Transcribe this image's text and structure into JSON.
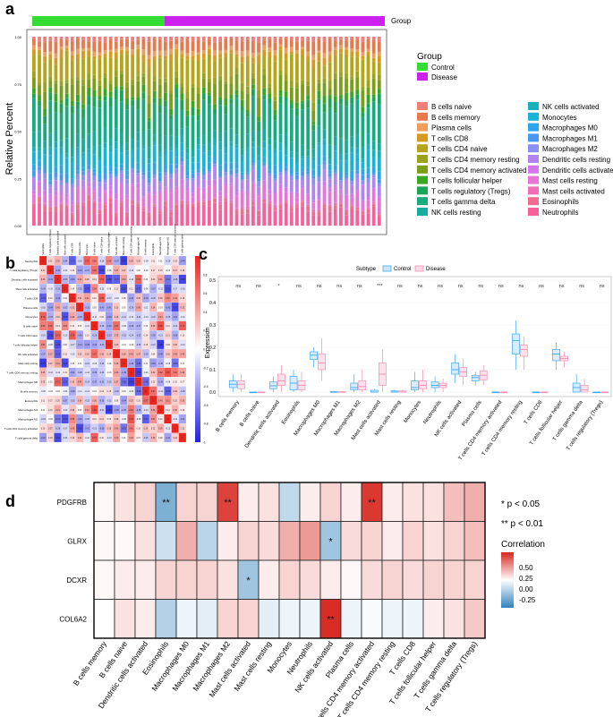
{
  "panel_labels": {
    "a": "a",
    "b": "b",
    "c": "c",
    "d": "d"
  },
  "colors": {
    "control": "#33dd33",
    "disease": "#cc22ee",
    "cells": [
      "#f07f7a",
      "#e8784e",
      "#ef9d5a",
      "#d69a1f",
      "#b5a51a",
      "#9aa418",
      "#7a9e15",
      "#3aa722",
      "#1aa659",
      "#19ab7d",
      "#17ad9c",
      "#19b0bd",
      "#1ab3d8",
      "#2aa6ec",
      "#4a97f0",
      "#8b8ff5",
      "#b183f3",
      "#d476ec",
      "#e874d6",
      "#f06fb6",
      "#f46b92",
      "#f7619a"
    ],
    "box_control": "#3fa9f5",
    "box_disease": "#f08fb4",
    "corr_low": "#3182bd",
    "corr_mid": "#ffffff",
    "corr_high": "#d7261e"
  },
  "legend": {
    "group_title": "Group",
    "group_items": [
      "Control",
      "Disease"
    ],
    "cell_types": [
      "B cells naive",
      "B cells memory",
      "Plasma cells",
      "T cells CD8",
      "T cells CD4 naive",
      "T cells CD4 memory resting",
      "T cells CD4 memory activated",
      "T cells follicular helper",
      "T cells regulatory (Tregs)",
      "T cells gamma delta",
      "NK cells resting",
      "NK cells activated",
      "Monocytes",
      "Macrophages M0",
      "Macrophages M1",
      "Macrophages M2",
      "Dendritic cells resting",
      "Dendritic cells activated",
      "Mast cells resting",
      "Mast cells activated",
      "Eosinophils",
      "Neutrophils"
    ]
  },
  "annotations": {
    "group_bar_label": "Group",
    "sig1": "* p < 0.05",
    "sig2": "** p < 0.01",
    "subtype_title": "Subtype",
    "subtype_control": "Control",
    "subtype_disease": "Disease",
    "corr_title": "Correlation"
  },
  "chart_data": [
    {
      "id": "a",
      "type": "bar",
      "stacked": true,
      "ylabel": "Relative Percent",
      "xlabel": "",
      "yticks": [
        "0.00",
        "0.25",
        "0.50",
        "0.75",
        "1.00"
      ],
      "ylim": [
        0,
        1
      ],
      "n_control": 24,
      "n_disease": 40,
      "series_note": "22 stacked immune cell fractions per sample (bottom: Neutrophils, top: B cells naive)"
    },
    {
      "id": "b",
      "type": "heatmap",
      "labels": [
        "Neutrophils",
        "T cells regulatory (Tregs)",
        "Dendritic cells activated",
        "Mast cells activated",
        "T cells CD8",
        "Plasma cells",
        "Monocytes",
        "B cells naive",
        "T cells CD4 naive",
        "T cells follicular helper",
        "NK cells activated",
        "Mast cells resting",
        "T cells CD4 memory resting",
        "Macrophages M0",
        "B cells memory",
        "Eosinophils",
        "Macrophages M1",
        "Macrophages M2",
        "T cells CD4 memory activated",
        "T cells gamma delta"
      ],
      "scale_ticks": [
        "1",
        "0.8",
        "0.6",
        "0.4",
        "0.2",
        "0",
        "-0.2",
        "-0.4",
        "-0.6",
        "-0.8",
        "-1"
      ]
    },
    {
      "id": "c",
      "type": "box",
      "ylabel": "Expression",
      "yticks": [
        "0.0",
        "0.1",
        "0.2",
        "0.3",
        "0.4",
        "0.5"
      ],
      "ylim": [
        0,
        0.5
      ],
      "categories": [
        "B cells memory",
        "B cells naive",
        "Dendritic cells activated",
        "Eosinophils",
        "Macrophages M0",
        "Macrophages M1",
        "Macrophages M2",
        "Mast cells activated",
        "Mast cells resting",
        "Monocytes",
        "Neutrophils",
        "NK cells activated",
        "Plasma cells",
        "T cells CD4 memory activated",
        "T cells CD4 memory resting",
        "T cells CD8",
        "T cells follicular helper",
        "T cells gamma delta",
        "T cells regulatory (Tregs)"
      ],
      "significance": [
        "ns",
        "ns",
        "*",
        "ns",
        "ns",
        "ns",
        "ns",
        "***",
        "ns",
        "ns",
        "ns",
        "ns",
        "ns",
        "ns",
        "ns",
        "ns",
        "ns",
        "ns",
        "ns"
      ],
      "control": [
        [
          0.0,
          0.02,
          0.035,
          0.05,
          0.08
        ],
        [
          0,
          0,
          0,
          0,
          0.002
        ],
        [
          0.0,
          0.015,
          0.028,
          0.045,
          0.07
        ],
        [
          0.0,
          0.01,
          0.04,
          0.07,
          0.1
        ],
        [
          0.11,
          0.145,
          0.165,
          0.18,
          0.2
        ],
        [
          0,
          0,
          0,
          0.002,
          0.005
        ],
        [
          0.0,
          0.01,
          0.02,
          0.04,
          0.08
        ],
        [
          0,
          0,
          0,
          0.008,
          0.015
        ],
        [
          0,
          0,
          0,
          0.005,
          0.01
        ],
        [
          0.0,
          0.01,
          0.02,
          0.05,
          0.09
        ],
        [
          0.0,
          0.02,
          0.03,
          0.045,
          0.07
        ],
        [
          0.04,
          0.08,
          0.1,
          0.13,
          0.17
        ],
        [
          0.03,
          0.05,
          0.065,
          0.075,
          0.09
        ],
        [
          0,
          0,
          0,
          0,
          0.001
        ],
        [
          0.1,
          0.17,
          0.23,
          0.26,
          0.32
        ],
        [
          0,
          0,
          0,
          0,
          0.002
        ],
        [
          0.1,
          0.14,
          0.17,
          0.19,
          0.22
        ],
        [
          0.0,
          0.0,
          0.02,
          0.04,
          0.08
        ],
        [
          0,
          0,
          0,
          0,
          0.002
        ]
      ],
      "disease": [
        [
          0.0,
          0.015,
          0.035,
          0.05,
          0.08
        ],
        [
          0,
          0,
          0,
          0,
          0.002
        ],
        [
          0.0,
          0.03,
          0.05,
          0.08,
          0.12
        ],
        [
          0.0,
          0.01,
          0.03,
          0.05,
          0.09
        ],
        [
          0.05,
          0.1,
          0.13,
          0.17,
          0.24
        ],
        [
          0,
          0,
          0,
          0.002,
          0.005
        ],
        [
          0.0,
          0.01,
          0.025,
          0.05,
          0.1
        ],
        [
          0.0,
          0.03,
          0.08,
          0.13,
          0.19
        ],
        [
          0,
          0,
          0,
          0.005,
          0.01
        ],
        [
          0.0,
          0.015,
          0.03,
          0.05,
          0.1
        ],
        [
          0.0,
          0.02,
          0.03,
          0.04,
          0.06
        ],
        [
          0.03,
          0.07,
          0.09,
          0.11,
          0.15
        ],
        [
          0.03,
          0.055,
          0.075,
          0.095,
          0.12
        ],
        [
          0,
          0,
          0,
          0,
          0.001
        ],
        [
          0.1,
          0.16,
          0.19,
          0.21,
          0.25
        ],
        [
          0,
          0,
          0,
          0,
          0.002
        ],
        [
          0.11,
          0.14,
          0.15,
          0.16,
          0.18
        ],
        [
          0.0,
          0.0,
          0.01,
          0.03,
          0.06
        ],
        [
          0,
          0,
          0,
          0,
          0.002
        ]
      ]
    },
    {
      "id": "d",
      "type": "heatmap",
      "rows": [
        "PDGFRB",
        "GLRX",
        "DCXR",
        "COL6A2"
      ],
      "columns": [
        "B cells memory",
        "B cells naive",
        "Dendritic cells activated",
        "Eosinophils",
        "Macrophages M0",
        "Macrophages M1",
        "Macrophages M2",
        "Mast cells activated",
        "Mast cells resting",
        "Monocytes",
        "Neutrophils",
        "NK cells activated",
        "Plasma cells",
        "T cells CD4 memory activated",
        "T cells CD4 memory resting",
        "T cells CD8",
        "T cells follicular helper",
        "T cells gamma delta",
        "T cells regulatory (Tregs)"
      ],
      "values": [
        [
          0.02,
          0.08,
          0.12,
          -0.38,
          0.12,
          0.12,
          0.52,
          0.05,
          0.08,
          -0.18,
          0.05,
          0.12,
          0.05,
          0.55,
          0.05,
          0.08,
          0.08,
          0.18,
          0.22
        ],
        [
          0.02,
          0.02,
          0.08,
          -0.15,
          0.22,
          -0.2,
          0.05,
          0.12,
          0.1,
          0.22,
          0.28,
          -0.28,
          0.1,
          0.12,
          0.05,
          0.12,
          0.08,
          0.12,
          0.18
        ],
        [
          0.02,
          0.05,
          0.05,
          0.12,
          0.12,
          0.12,
          0.08,
          -0.28,
          0.05,
          0.12,
          0.1,
          0.05,
          0.02,
          0.1,
          0.12,
          0.1,
          0.12,
          0.12,
          0.12
        ],
        [
          0.0,
          0.08,
          0.05,
          -0.22,
          -0.05,
          -0.08,
          0.12,
          0.12,
          -0.08,
          -0.05,
          -0.05,
          0.58,
          -0.05,
          -0.02,
          -0.05,
          -0.05,
          0.05,
          0.08,
          0.15
        ]
      ],
      "stars": [
        [
          "",
          "",
          "",
          "**",
          "",
          "",
          "**",
          "",
          "",
          "",
          "",
          "",
          "",
          "**",
          "",
          "",
          "",
          "",
          ""
        ],
        [
          "",
          "",
          "",
          "",
          "",
          "",
          "",
          "",
          "",
          "",
          "",
          "*",
          "",
          "",
          "",
          "",
          "",
          "",
          ""
        ],
        [
          "",
          "",
          "",
          "",
          "",
          "",
          "",
          "*",
          "",
          "",
          "",
          "",
          "",
          "",
          "",
          "",
          "",
          "",
          ""
        ],
        [
          "",
          "",
          "",
          "",
          "",
          "",
          "",
          "",
          "",
          "",
          "",
          "**",
          "",
          "",
          "",
          "",
          "",
          "",
          ""
        ]
      ],
      "legend_ticks": [
        "0.50",
        "0.25",
        "0.00",
        "-0.25"
      ]
    }
  ]
}
